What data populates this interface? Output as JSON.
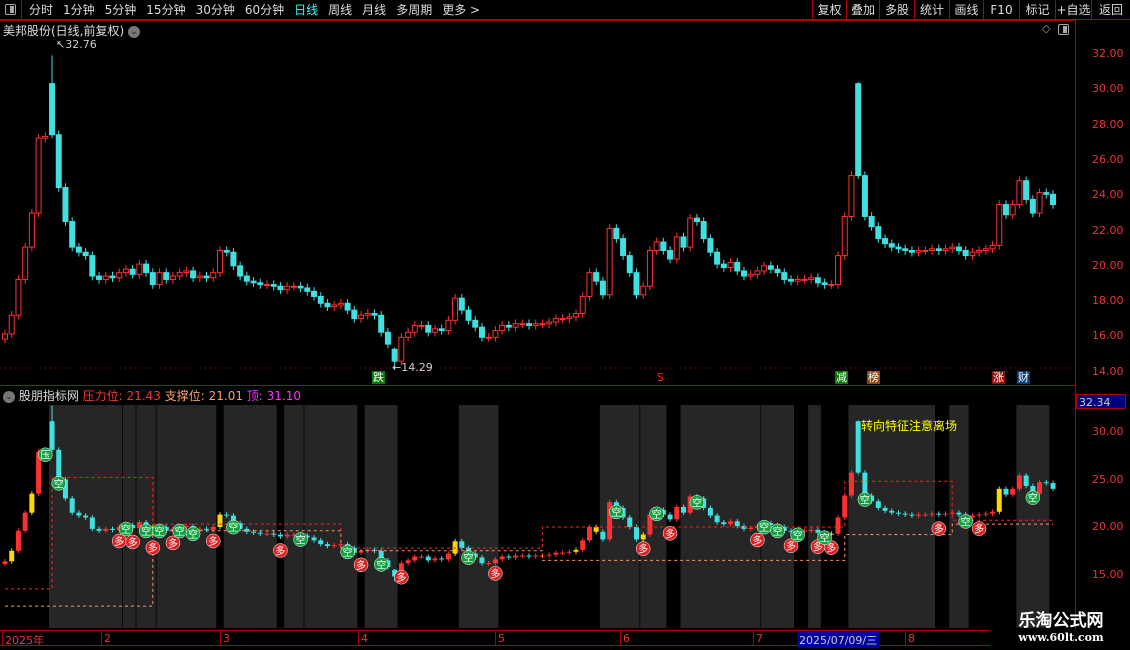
{
  "toolbar": {
    "periods": [
      "分时",
      "1分钟",
      "5分钟",
      "15分钟",
      "30分钟",
      "60分钟",
      "日线",
      "周线",
      "月线",
      "多周期",
      "更多 >"
    ],
    "active_period": "日线",
    "buttons": [
      "复权",
      "叠加",
      "多股",
      "统计",
      "画线",
      "F10",
      "标记",
      "+自选",
      "返回"
    ]
  },
  "stock_title": "美邦股份(日线,前复权)",
  "main_axis": [
    "32.00",
    "30.00",
    "28.00",
    "26.00",
    "24.00",
    "22.00",
    "20.00",
    "18.00",
    "16.00",
    "14.00"
  ],
  "annotations": {
    "high": "32.76",
    "low": "14.29"
  },
  "tags": [
    {
      "t": "跌",
      "bg": "#0a7a0a",
      "fg": "#fff"
    },
    {
      "t": "S",
      "bg": "transparent",
      "fg": "#f22"
    },
    {
      "t": "减",
      "bg": "#0a7a0a",
      "fg": "#fff"
    },
    {
      "t": "榜",
      "bg": "#8a4a10",
      "fg": "#fff"
    },
    {
      "t": "涨",
      "bg": "#9a0a0a",
      "fg": "#fff"
    },
    {
      "t": "财",
      "bg": "#0a3a7a",
      "fg": "#fff"
    }
  ],
  "indicator": {
    "name": "股朋指标网",
    "pressure_label": "压力位:",
    "pressure": "21.43",
    "support_label": "支撑位:",
    "support": "21.01",
    "top_label": "顶:",
    "top": "31.10",
    "current": "32.34",
    "axis": [
      "30.00",
      "25.00",
      "20.00",
      "15.00"
    ],
    "warning": "转向特征注意离场"
  },
  "date_axis": {
    "labels": [
      "2025年",
      "2",
      "3",
      "4",
      "5",
      "6",
      "7",
      "8"
    ],
    "selected": "2025/07/09/三"
  },
  "watermark": {
    "name": "乐淘公式网",
    "url": "www.60lt.com"
  },
  "colors": {
    "up": "#ff3030",
    "down": "#40e0e0",
    "signal_yellow": "#ffd700",
    "band": "#262626",
    "pressure": "#ff2020",
    "support": "#ff9060"
  },
  "chart_data": {
    "type": "candlestick",
    "main_ylim": [
      13.4,
      33.9
    ],
    "indicator_ylim": [
      9.4,
      32.8
    ],
    "closes": [
      16.4,
      17.5,
      19.6,
      21.5,
      23.5,
      27.9,
      28,
      28.1,
      25,
      23,
      21.5,
      21.2,
      21,
      19.8,
      19.6,
      19.8,
      19.7,
      20,
      20.2,
      19.9,
      20.5,
      20,
      19.3,
      20,
      19.6,
      19.8,
      20,
      20.1,
      19.7,
      19.8,
      19.7,
      20,
      21.3,
      21.2,
      20.4,
      19.8,
      19.5,
      19.4,
      19.3,
      19.3,
      19.2,
      19,
      19.2,
      19.2,
      19.1,
      18.9,
      18.6,
      18.2,
      18,
      18.1,
      18.2,
      17.8,
      17.3,
      17.5,
      17.6,
      17.5,
      16.5,
      15.8,
      14.8,
      16.2,
      16.5,
      16.9,
      16.9,
      16.5,
      16.7,
      16.6,
      17.2,
      18.5,
      17.8,
      17.2,
      16.8,
      16.2,
      16.2,
      16.6,
      16.9,
      16.8,
      17,
      17,
      16.9,
      17,
      17,
      17.1,
      17.3,
      17.3,
      17.4,
      17.6,
      18.6,
      20,
      19.5,
      18.7,
      22.6,
      22,
      21,
      20,
      18.7,
      19.2,
      21.3,
      21.8,
      21.3,
      20.8,
      22.1,
      21.5,
      23.2,
      23,
      22,
      21.2,
      20.5,
      20.3,
      20.6,
      20.1,
      19.8,
      19.9,
      20.1,
      20.4,
      20.2,
      20,
      19.6,
      19.5,
      19.6,
      19.6,
      19.7,
      19.4,
      19.3,
      19.3,
      21,
      23.3,
      25.7,
      25.7,
      23.3,
      22.7,
      22,
      21.7,
      21.5,
      21.4,
      21.3,
      21.2,
      21.3,
      21.3,
      21.4,
      21.3,
      21.4,
      21.5,
      21.3,
      21,
      21.2,
      21.3,
      21.4,
      21.6,
      24,
      23.4,
      24,
      25.4,
      24.3,
      23.5,
      24.7,
      24.6,
      24
    ],
    "ohlc_overrides": {
      "7": [
        31.1,
        28.1,
        32.76,
        27.9
      ],
      "58": [
        15.5,
        14.8,
        15.6,
        14.29
      ],
      "127": [
        31.1,
        25.7,
        31.2,
        25.5
      ]
    },
    "bands": [
      [
        7,
        17
      ],
      [
        18,
        19
      ],
      [
        20,
        22
      ],
      [
        23,
        25
      ],
      [
        25,
        27
      ],
      [
        27,
        31
      ],
      [
        33,
        40
      ],
      [
        42,
        44
      ],
      [
        45,
        52
      ],
      [
        54,
        58
      ],
      [
        68,
        73
      ],
      [
        89,
        94
      ],
      [
        95,
        98
      ],
      [
        101,
        111
      ],
      [
        111,
        112
      ],
      [
        113,
        117
      ],
      [
        120,
        121
      ],
      [
        126,
        138
      ],
      [
        141,
        143
      ],
      [
        151,
        155
      ]
    ],
    "pressure_steps": [
      [
        0,
        13.5
      ],
      [
        7,
        25.2
      ],
      [
        22,
        20.3
      ],
      [
        50,
        17.8
      ],
      [
        80,
        20
      ],
      [
        125,
        24.8
      ],
      [
        141,
        20.7
      ]
    ],
    "support_steps": [
      [
        0,
        11.7
      ],
      [
        22,
        19.6
      ],
      [
        50,
        17.5
      ],
      [
        80,
        16.5
      ],
      [
        125,
        19.2
      ],
      [
        141,
        20.3
      ]
    ],
    "yellow_indices": [
      1,
      4,
      22,
      32,
      67,
      85,
      88,
      95,
      123,
      148
    ],
    "signals": {
      "空": [
        8,
        18,
        21,
        23,
        26,
        28,
        34,
        44,
        51,
        56,
        69,
        91,
        97,
        103,
        113,
        115,
        118,
        122,
        128,
        143,
        153
      ],
      "多": [
        17,
        19,
        22,
        25,
        31,
        41,
        53,
        59,
        73,
        95,
        99,
        112,
        117,
        121,
        123,
        139,
        145
      ],
      "压": [
        6
      ]
    }
  }
}
